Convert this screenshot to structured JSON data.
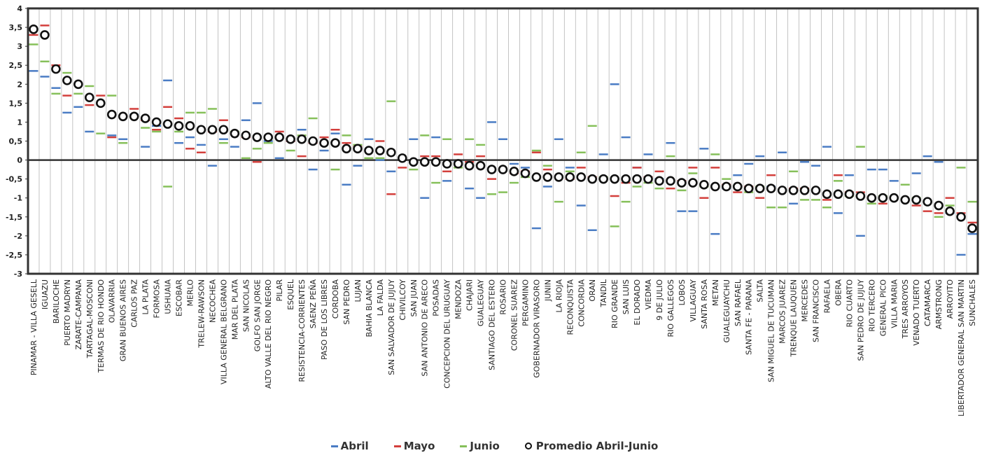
{
  "chart_data": {
    "type": "scatter",
    "title": "",
    "xlabel": "",
    "ylabel": "",
    "ylim": [
      -3,
      4
    ],
    "yticks": [
      "4",
      "3,5",
      "3",
      "2,5",
      "2",
      "1,5",
      "1",
      "0,5",
      "0",
      "-0,5",
      "-1",
      "-1,5",
      "-2",
      "-2,5",
      "-3"
    ],
    "grid": "vertical",
    "legend_position": "bottom",
    "colors": {
      "Abril": "#4a7cc4",
      "Mayo": "#d33f3c",
      "Junio": "#86c05a",
      "Promedio": "#111111"
    },
    "categories": [
      "PINAMAR - VILLA GESELL",
      "IGUAZU",
      "BARILOCHE",
      "PUERTO MADRYN",
      "ZARATE-CAMPANA",
      "TARTAGAL-MOSCONI",
      "TERMAS DE RIO HONDO",
      "OLAVARRIA",
      "GRAN BUENOS AIRES",
      "CARLOS PAZ",
      "LA PLATA",
      "FORMOSA",
      "USHUAIA",
      "ESCOBAR",
      "MERLO",
      "TRELEW-RAWSON",
      "NECOCHEA",
      "VILLA GENERAL BELGRANO",
      "MAR DEL PLATA",
      "SAN NICOLAS",
      "GOLFO SAN JORGE",
      "ALTO VALLE DEL RIO NEGRO",
      "PILAR",
      "ESQUEL",
      "RESISTENCIA-CORRIENTES",
      "SAENZ PEÑA",
      "PASO DE LOS LIBRES",
      "CORDOBA",
      "SAN PEDRO",
      "LUJAN",
      "BAHIA BLANCA",
      "LA FALDA",
      "SAN SALVADOR DE JUJUY",
      "CHIVILCOY",
      "SAN JUAN",
      "SAN ANTONIO DE ARECO",
      "POSADAS",
      "CONCEPCION DEL URUGUAY",
      "MENDOZA",
      "CHAJARI",
      "GUALEGUAY",
      "SANTIAGO DEL ESTERO",
      "ROSARIO",
      "CORONEL SUAREZ",
      "PERGAMINO",
      "GOBERNADOR VIRASORO",
      "JUNIN",
      "LA RIOJA",
      "RECONQUISTA",
      "CONCORDIA",
      "ORAN",
      "TANDIL",
      "RIO GRANDE",
      "SAN LUIS",
      "EL DORADO",
      "VIEDMA",
      "9 DE JULIO",
      "RIO GALLEGOS",
      "LOBOS",
      "VILLAGUAY",
      "SANTA ROSA",
      "METAN",
      "GUALEGUAYCHU",
      "SAN RAFAEL",
      "SANTA FE - PARANA",
      "SALTA",
      "SAN MIGUEL DE TUCUMAN",
      "MARCOS JUAREZ",
      "TRENQUE LAUQUEN",
      "MERCEDES",
      "SAN FRANCISCO",
      "RAFAELA",
      "OBERA",
      "RIO CUARTO",
      "SAN PEDRO DE JUJUY",
      "RIO TERCERO",
      "GENERAL PICO",
      "VILLA MARIA",
      "TRES ARROYOS",
      "VENADO TUERTO",
      "CATAMARCA",
      "ARMSTRONG",
      "ARROYITO",
      "LIBERTADOR GENERAL SAN MARTIN",
      "SUNCHALES"
    ],
    "series": [
      {
        "name": "Abril",
        "values": [
          2.35,
          2.2,
          1.9,
          1.25,
          1.4,
          0.75,
          1.5,
          0.65,
          0.55,
          1.2,
          0.35,
          0.9,
          2.1,
          0.45,
          0.6,
          0.4,
          -0.15,
          0.55,
          0.35,
          1.05,
          1.5,
          0.5,
          0.05,
          0.5,
          0.8,
          -0.25,
          0.25,
          0.7,
          -0.65,
          -0.15,
          0.55,
          0.0,
          -0.3,
          0.05,
          0.55,
          -1.0,
          0.6,
          -0.55,
          -0.05,
          -0.75,
          -1.0,
          1.0,
          0.55,
          -0.1,
          -0.2,
          -1.8,
          -0.7,
          0.55,
          -0.2,
          -1.2,
          -1.85,
          0.15,
          2.0,
          0.6,
          -0.2,
          0.15,
          -0.5,
          0.45,
          -1.35,
          -1.35,
          0.3,
          -1.95,
          -0.75,
          -0.4,
          -0.1,
          0.1,
          -0.7,
          0.2,
          -1.15,
          -0.05,
          -0.15,
          0.35,
          -1.4,
          -0.4,
          -2.0,
          -0.25,
          -0.25,
          -0.55,
          -1.05,
          -0.35,
          0.1,
          -0.05,
          -1.4,
          -2.5,
          -1.95
        ]
      },
      {
        "name": "Mayo",
        "values": [
          3.3,
          3.55,
          2.5,
          1.7,
          2.0,
          1.45,
          1.7,
          0.6,
          1.15,
          1.35,
          1.05,
          0.8,
          1.4,
          1.1,
          0.3,
          0.2,
          0.75,
          1.05,
          0.7,
          0.6,
          -0.05,
          0.6,
          0.75,
          0.5,
          0.1,
          0.45,
          0.6,
          0.8,
          0.45,
          0.35,
          0.25,
          0.5,
          -0.9,
          -0.2,
          -0.05,
          0.1,
          0.1,
          -0.3,
          0.15,
          -0.05,
          0.1,
          -0.5,
          -0.25,
          -0.35,
          -0.3,
          0.2,
          -0.25,
          -0.45,
          -0.5,
          -0.2,
          -0.45,
          -0.5,
          -0.95,
          -0.6,
          -0.2,
          -0.45,
          -0.3,
          -0.75,
          -0.55,
          -0.2,
          -1.0,
          -0.2,
          -0.65,
          -0.85,
          -0.7,
          -1.0,
          -0.4,
          -0.8,
          -0.75,
          -0.75,
          -0.8,
          -1.05,
          -0.4,
          -0.85,
          -0.85,
          -1.0,
          -1.15,
          -1.0,
          -1.05,
          -1.2,
          -1.35,
          -1.4,
          -1.0,
          -1.4,
          -1.65
        ]
      },
      {
        "name": "Junio",
        "values": [
          3.05,
          2.6,
          1.75,
          2.3,
          1.75,
          1.95,
          0.7,
          1.7,
          0.45,
          1.15,
          0.85,
          0.75,
          -0.7,
          0.75,
          1.25,
          1.25,
          1.35,
          0.45,
          0.75,
          0.05,
          0.3,
          0.45,
          0.6,
          0.25,
          0.65,
          1.1,
          0.45,
          -0.25,
          0.65,
          0.4,
          0.05,
          0.05,
          1.55,
          0.05,
          -0.25,
          0.65,
          -0.6,
          0.55,
          -0.2,
          0.55,
          0.4,
          -0.9,
          -0.85,
          -0.6,
          -0.45,
          0.25,
          -0.15,
          -1.1,
          -0.3,
          0.2,
          0.9,
          -0.45,
          -1.75,
          -1.1,
          -0.7,
          -0.6,
          -0.75,
          0.1,
          -0.8,
          -0.35,
          -0.7,
          0.15,
          -0.5,
          -0.7,
          -0.85,
          -0.7,
          -1.25,
          -1.25,
          -0.3,
          -1.05,
          -1.05,
          -1.25,
          -0.55,
          -0.95,
          0.35,
          -1.15,
          -0.95,
          -1.0,
          -0.65,
          -1.0,
          -1.1,
          -1.5,
          -1.2,
          -0.2,
          -1.1
        ]
      },
      {
        "name": "Promedio Abril-Junio",
        "values": [
          3.45,
          3.3,
          2.4,
          2.1,
          2.0,
          1.65,
          1.5,
          1.2,
          1.15,
          1.15,
          1.1,
          1.0,
          0.95,
          0.9,
          0.9,
          0.8,
          0.8,
          0.8,
          0.7,
          0.65,
          0.6,
          0.6,
          0.6,
          0.55,
          0.55,
          0.5,
          0.45,
          0.45,
          0.3,
          0.3,
          0.25,
          0.25,
          0.2,
          0.05,
          -0.05,
          -0.05,
          -0.05,
          -0.1,
          -0.1,
          -0.15,
          -0.15,
          -0.25,
          -0.25,
          -0.3,
          -0.35,
          -0.45,
          -0.45,
          -0.45,
          -0.45,
          -0.45,
          -0.5,
          -0.5,
          -0.5,
          -0.5,
          -0.5,
          -0.5,
          -0.55,
          -0.55,
          -0.6,
          -0.6,
          -0.65,
          -0.7,
          -0.7,
          -0.7,
          -0.75,
          -0.75,
          -0.75,
          -0.8,
          -0.8,
          -0.8,
          -0.8,
          -0.9,
          -0.9,
          -0.9,
          -0.95,
          -1.0,
          -1.0,
          -1.0,
          -1.05,
          -1.05,
          -1.1,
          -1.2,
          -1.35,
          -1.5,
          -1.8
        ]
      }
    ]
  }
}
